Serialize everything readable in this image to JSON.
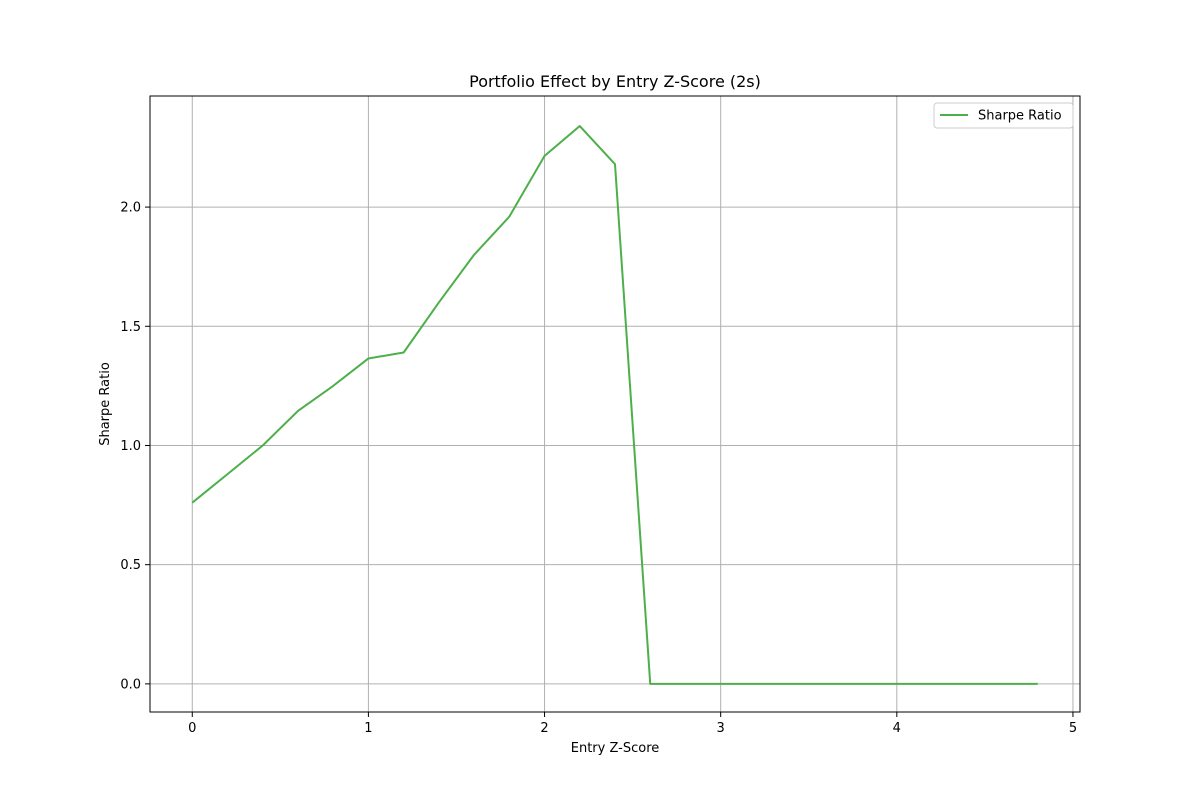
{
  "chart_data": {
    "type": "line",
    "title": "Portfolio Effect by Entry Z-Score (2s)",
    "xlabel": "Entry Z-Score",
    "ylabel": "Sharpe Ratio",
    "xlim": [
      -0.24,
      5.04
    ],
    "ylim": [
      -0.118,
      2.466
    ],
    "x_ticks": [
      0,
      1,
      2,
      3,
      4,
      5
    ],
    "x_tick_labels": [
      "0",
      "1",
      "2",
      "3",
      "4",
      "5"
    ],
    "y_ticks": [
      0.0,
      0.5,
      1.0,
      1.5,
      2.0
    ],
    "y_tick_labels": [
      "0.0",
      "0.5",
      "1.0",
      "1.5",
      "2.0"
    ],
    "grid": true,
    "legend_position": "top-right",
    "series": [
      {
        "name": "Sharpe Ratio",
        "color": "#4daf4a",
        "x": [
          0.0,
          0.2,
          0.4,
          0.6,
          0.8,
          1.0,
          1.2,
          1.4,
          1.6,
          1.8,
          2.0,
          2.2,
          2.4,
          2.6,
          2.8,
          3.0,
          3.2,
          3.4,
          3.6,
          3.8,
          4.0,
          4.2,
          4.4,
          4.6,
          4.8
        ],
        "y": [
          0.76,
          0.88,
          1.0,
          1.145,
          1.25,
          1.365,
          1.39,
          1.6,
          1.8,
          1.96,
          2.215,
          2.34,
          2.18,
          0.0,
          0.0,
          0.0,
          0.0,
          0.0,
          0.0,
          0.0,
          0.0,
          0.0,
          0.0,
          0.0,
          0.0
        ]
      }
    ]
  }
}
